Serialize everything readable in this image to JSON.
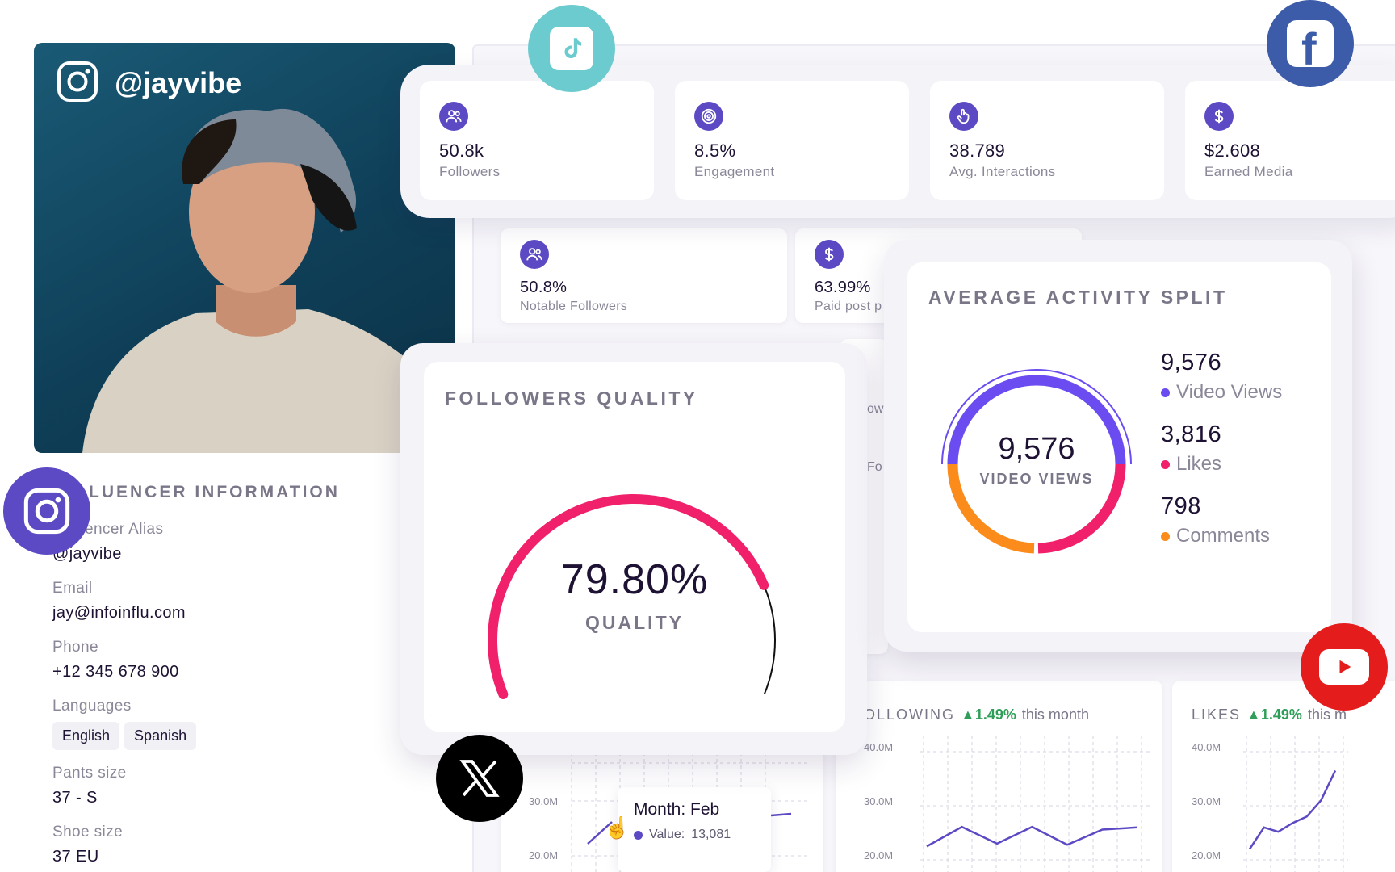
{
  "profile": {
    "handle": "@jayvibe",
    "platform_icon": "instagram-icon"
  },
  "top_stats": [
    {
      "value": "50.8k",
      "label": "Followers",
      "icon": "users-icon"
    },
    {
      "value": "8.5%",
      "label": "Engagement",
      "icon": "target-icon"
    },
    {
      "value": "38.789",
      "label": "Avg. Interactions",
      "icon": "hand-pointer-icon"
    },
    {
      "value": "$2.608",
      "label": "Earned Media",
      "icon": "dollar-icon"
    }
  ],
  "secondary_stats": [
    {
      "value": "50.8%",
      "label": "Notable Followers",
      "icon": "users-icon"
    },
    {
      "value": "63.99%",
      "label": "Paid post p",
      "icon": "dollar-icon"
    }
  ],
  "peek_texts": {
    "a": "owe",
    "b": "Fo"
  },
  "influencer_info": {
    "title": "LUENCER INFORMATION",
    "fields": [
      {
        "label": "encer Alias",
        "value": "@jayvibe"
      },
      {
        "label": "Email",
        "value": "jay@infoinflu.com"
      },
      {
        "label": "Phone",
        "value": "+12 345 678 900"
      }
    ],
    "languages_label": "Languages",
    "languages": [
      "English",
      "Spanish"
    ],
    "more_fields": [
      {
        "label": "Pants size",
        "value": "37 - S"
      },
      {
        "label": "Shoe size",
        "value": "37 EU"
      }
    ]
  },
  "followers_quality": {
    "title": "FOLLOWERS QUALITY",
    "value": "79.80%",
    "sublabel": "QUALITY",
    "fraction": 0.798,
    "color": "#f0206a"
  },
  "activity_split": {
    "title": "AVERAGE ACTIVITY SPLIT",
    "center_value": "9,576",
    "center_label": "VIDEO VIEWS",
    "items": [
      {
        "value": "9,576",
        "label": "Video Views",
        "color": "#6a4cf0"
      },
      {
        "value": "3,816",
        "label": "Likes",
        "color": "#f0206a"
      },
      {
        "value": "798",
        "label": "Comments",
        "color": "#fb8c1c"
      }
    ]
  },
  "mini_charts": [
    {
      "title": "OLLOWING",
      "change": "1.49%",
      "period": "this month",
      "chart_data": {
        "type": "line",
        "yticks": [
          "40.0M",
          "30.0M",
          "20.0M"
        ],
        "values": [
          22.5,
          26.1,
          23.0,
          26.1,
          22.8,
          25.6,
          26.0
        ],
        "ylim": [
          20,
          40
        ]
      }
    },
    {
      "title": "LIKES",
      "change": "1.49%",
      "period": "this m",
      "chart_data": {
        "type": "line",
        "yticks": [
          "40.0M",
          "30.0M",
          "20.0M"
        ],
        "values": [
          22.0,
          26.0,
          25.2,
          26.8,
          28.0,
          31.0,
          36.5
        ],
        "ylim": [
          20,
          40
        ]
      }
    }
  ],
  "left_chart": {
    "yticks": [
      "30.0M",
      "20.0M"
    ],
    "tooltip": {
      "title": "Month: Feb",
      "value_label": "Value:",
      "value": "13,081"
    }
  },
  "colors": {
    "accent": "#5b4ac4",
    "tiktok": "#6ccbcf",
    "facebook": "#3c5ba9",
    "youtube": "#e41c1c",
    "instagram": "#5b4ac4"
  }
}
